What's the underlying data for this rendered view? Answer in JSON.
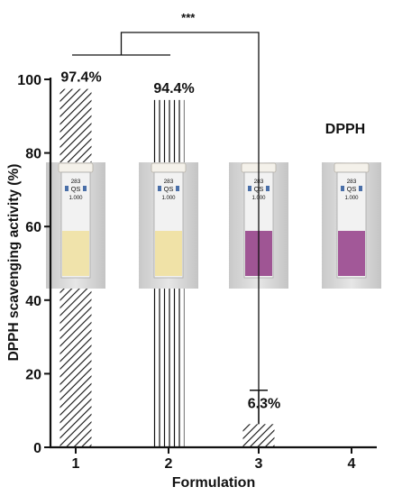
{
  "chart_data": {
    "type": "bar",
    "categories": [
      "1",
      "2",
      "3",
      "4"
    ],
    "values": [
      97.4,
      94.4,
      6.3,
      0
    ],
    "data_labels": [
      "97.4%",
      "94.4%",
      "6.3%",
      ""
    ],
    "error_upper": [
      null,
      null,
      15.5,
      null
    ],
    "xlabel": "Formulation",
    "ylabel": "DPPH scavenging activity (%)",
    "ylim": [
      0,
      100
    ],
    "yticks": [
      0,
      20,
      40,
      60,
      80,
      100
    ],
    "grid": false,
    "legend": "none",
    "annotation": "DPPH",
    "significance": {
      "label": "***",
      "left_group": [
        "1",
        "2"
      ],
      "right_group": [
        "3"
      ]
    },
    "insets": [
      {
        "category": "1",
        "cuvette_text": [
          "283",
          "QS",
          "1.000"
        ],
        "liquid_color": "#efe2a6"
      },
      {
        "category": "2",
        "cuvette_text": [
          "283",
          "QS",
          "1.000"
        ],
        "liquid_color": "#efe0a2"
      },
      {
        "category": "3",
        "cuvette_text": [
          "283",
          "QS",
          "1.000"
        ],
        "liquid_color": "#9a4c8e"
      },
      {
        "category": "4",
        "cuvette_text": [
          "283",
          "QS",
          "1.000"
        ],
        "liquid_color": "#9d4f92"
      }
    ],
    "colors": {
      "axis": "#111111",
      "hatch": "#111111",
      "background": "#ffffff"
    }
  }
}
